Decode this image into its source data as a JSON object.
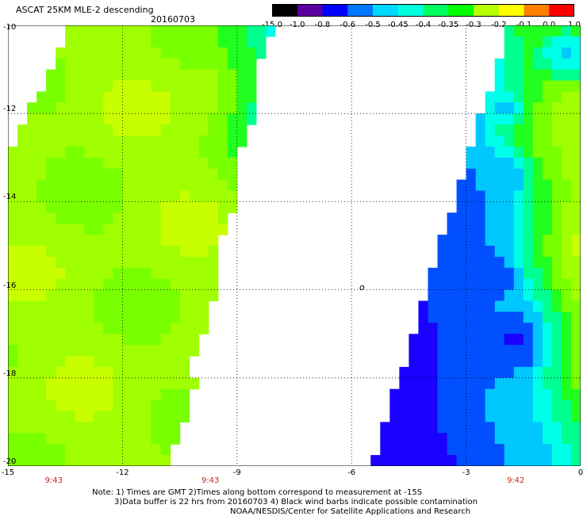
{
  "header": {
    "title": "ASCAT 25KM MLE-2 descending",
    "date": "20160703"
  },
  "colorbar": {
    "labels": [
      "-15.0",
      "-1.0",
      "-0.8",
      "-0.6",
      "-0.5",
      "-0.45",
      "-0.4",
      "-0.35",
      "-0.3",
      "-0.2",
      "-0.1",
      "0.0",
      "1.0"
    ],
    "colors": [
      "#000000",
      "#5a00a0",
      "#0000ff",
      "#0078ff",
      "#00d8ff",
      "#00ffe0",
      "#00ff60",
      "#00ff00",
      "#b4ff00",
      "#ffff00",
      "#ff8000",
      "#ff0000"
    ]
  },
  "map": {
    "x_ticks": [
      "-15",
      "-12",
      "-9",
      "-6",
      "-3",
      "0"
    ],
    "y_ticks": [
      "-10",
      "-12",
      "-14",
      "-16",
      "-18",
      "-20"
    ],
    "x_range": [
      -15,
      0
    ],
    "y_range": [
      -20,
      -10
    ],
    "grid": true,
    "marker": "o",
    "times": [
      {
        "label": "9:43",
        "lon": -13.8
      },
      {
        "label": "9:43",
        "lon": -9.7
      },
      {
        "label": "9:42",
        "lon": -1.7
      }
    ]
  },
  "notes": {
    "line1": "Note: 1) Times are GMT 2)Times along bottom correspond to measurement at -15S",
    "line2": "3)Data buffer is 22 hrs from 20160703 4) Black wind barbs indicate possible contamination",
    "line3": "NOAA/NESDIS/Center for Satellite Applications and Research"
  }
}
